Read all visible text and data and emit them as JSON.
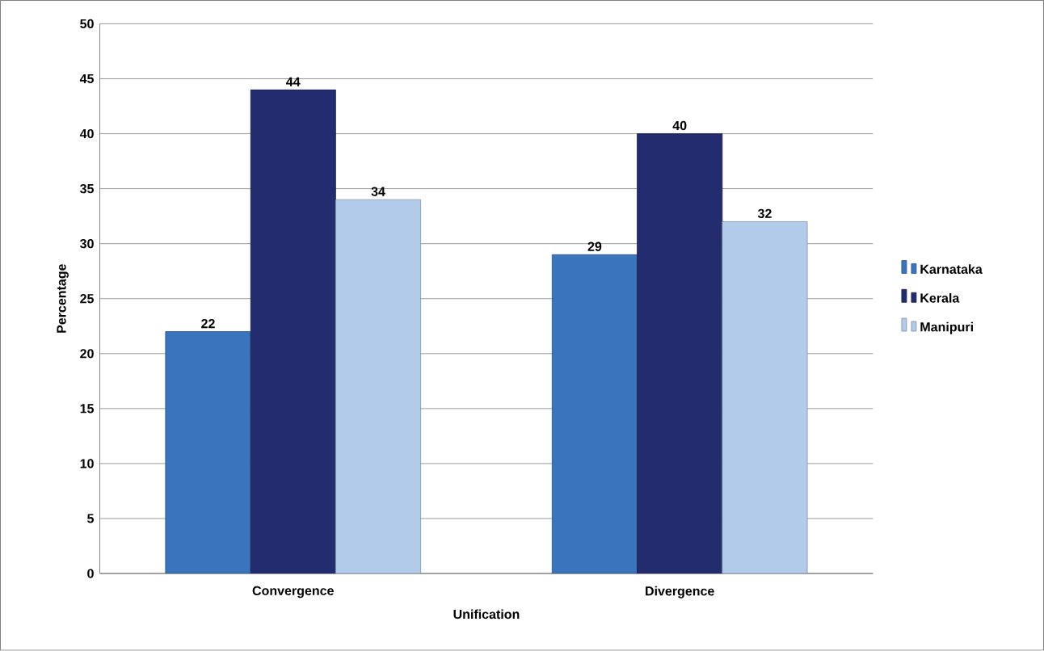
{
  "chart_data": {
    "type": "bar",
    "xlabel": "Unification",
    "ylabel": "Percentage",
    "categories": [
      "Convergence",
      "Divergence"
    ],
    "series": [
      {
        "name": "Karnataka",
        "color": "#3a74bd",
        "values": [
          22,
          29
        ]
      },
      {
        "name": "Kerala",
        "color": "#222c6e",
        "values": [
          44,
          40
        ]
      },
      {
        "name": "Manipuri",
        "color": "#b3cbea",
        "values": [
          34,
          32
        ]
      }
    ],
    "ylim": [
      0,
      50
    ],
    "yticks": [
      0,
      5,
      10,
      15,
      20,
      25,
      30,
      35,
      40,
      45,
      50
    ],
    "grid": "y",
    "legend": "right",
    "data_labels": true
  }
}
